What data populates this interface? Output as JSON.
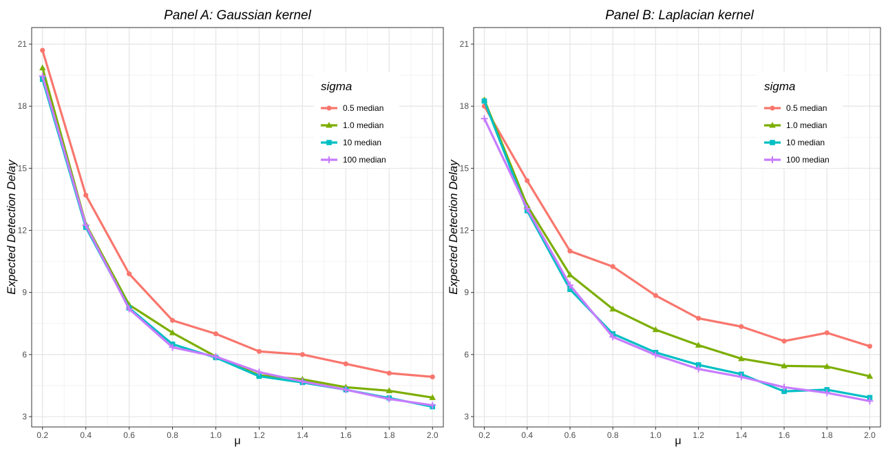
{
  "chart_data": [
    {
      "type": "line",
      "title": "Panel A: Gaussian kernel",
      "xlabel": "μ",
      "ylabel": "Expected Detection Delay",
      "x": [
        0.2,
        0.4,
        0.6,
        0.8,
        1.0,
        1.2,
        1.4,
        1.6,
        1.8,
        2.0
      ],
      "xticks": [
        "0.2",
        "0.4",
        "0.6",
        "0.8",
        "1.0",
        "1.2",
        "1.4",
        "1.6",
        "1.8",
        "2.0"
      ],
      "xlim": [
        0.15,
        2.05
      ],
      "yticks": [
        "3",
        "6",
        "9",
        "12",
        "15",
        "18",
        "21"
      ],
      "ylim": [
        2.5,
        21.8
      ],
      "grid": true,
      "legend": {
        "title": "sigma",
        "placement": "top-right"
      },
      "series": [
        {
          "name": "0.5 median",
          "color": "#F8766D",
          "marker": "circle",
          "values": [
            20.7,
            13.7,
            9.9,
            7.65,
            7.0,
            6.15,
            6.0,
            5.55,
            5.1,
            4.92
          ]
        },
        {
          "name": "1.0 median",
          "color": "#7CAE00",
          "marker": "triangle",
          "values": [
            19.85,
            12.3,
            8.4,
            7.05,
            5.9,
            5.0,
            4.8,
            4.42,
            4.25,
            3.92
          ]
        },
        {
          "name": "10 median",
          "color": "#00BFC4",
          "marker": "square",
          "values": [
            19.3,
            12.15,
            8.25,
            6.5,
            5.85,
            4.95,
            4.65,
            4.3,
            3.9,
            3.48
          ]
        },
        {
          "name": "100 median",
          "color": "#C77CFF",
          "marker": "cross",
          "values": [
            19.45,
            12.25,
            8.2,
            6.35,
            5.9,
            5.15,
            4.7,
            4.3,
            3.85,
            3.55
          ]
        }
      ]
    },
    {
      "type": "line",
      "title": "Panel B: Laplacian kernel",
      "xlabel": "μ",
      "ylabel": "Expected Detection Delay",
      "x": [
        0.2,
        0.4,
        0.6,
        0.8,
        1.0,
        1.2,
        1.4,
        1.6,
        1.8,
        2.0
      ],
      "xticks": [
        "0.2",
        "0.4",
        "0.6",
        "0.8",
        "1.0",
        "1.2",
        "1.4",
        "1.6",
        "1.8",
        "2.0"
      ],
      "xlim": [
        0.15,
        2.05
      ],
      "yticks": [
        "3",
        "6",
        "9",
        "12",
        "15",
        "18",
        "21"
      ],
      "ylim": [
        2.5,
        21.8
      ],
      "grid": true,
      "legend": {
        "title": "sigma",
        "placement": "top-right"
      },
      "series": [
        {
          "name": "0.5 median",
          "color": "#F8766D",
          "marker": "circle",
          "values": [
            18.0,
            14.4,
            11.0,
            10.25,
            8.85,
            7.75,
            7.35,
            6.65,
            7.05,
            6.4
          ]
        },
        {
          "name": "1.0 median",
          "color": "#7CAE00",
          "marker": "triangle",
          "values": [
            18.3,
            13.2,
            9.85,
            8.2,
            7.2,
            6.45,
            5.8,
            5.45,
            5.42,
            4.95
          ]
        },
        {
          "name": "10 median",
          "color": "#00BFC4",
          "marker": "square",
          "values": [
            18.25,
            12.95,
            9.15,
            7.0,
            6.1,
            5.5,
            5.05,
            4.22,
            4.3,
            3.92
          ]
        },
        {
          "name": "100 median",
          "color": "#C77CFF",
          "marker": "cross",
          "values": [
            17.4,
            13.05,
            9.35,
            6.85,
            5.98,
            5.3,
            4.92,
            4.42,
            4.15,
            3.75
          ]
        }
      ]
    }
  ]
}
